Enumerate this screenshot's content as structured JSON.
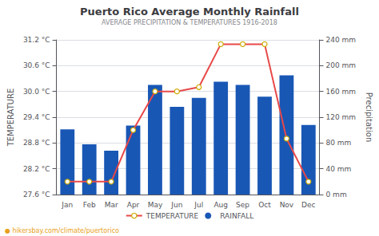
{
  "chart_data": {
    "type": "bar",
    "title": "Puerto Rico Average Monthly Rainfall",
    "subtitle": "AVERAGE PRECIPITATION & TEMPERATURES 1916-2018",
    "categories": [
      "Jan",
      "Feb",
      "Mar",
      "Apr",
      "May",
      "Jun",
      "Jul",
      "Aug",
      "Sep",
      "Oct",
      "Nov",
      "Dec"
    ],
    "series": [
      {
        "name": "TEMPERATURE",
        "type": "line",
        "color": "#e84848",
        "marker": "circle",
        "values": [
          27.9,
          27.9,
          27.9,
          29.1,
          30.0,
          30.0,
          30.1,
          31.1,
          31.1,
          31.1,
          28.9,
          27.9
        ]
      },
      {
        "name": "RAINFALL",
        "type": "bar",
        "color": "#1957b5",
        "axis": "y2",
        "values": [
          101,
          78,
          68,
          107,
          170,
          136,
          150,
          175,
          170,
          152,
          185,
          108
        ]
      }
    ],
    "ylabel": "TEMPERATURE",
    "y2label": "Precipitation",
    "ylim": [
      27.6,
      31.2
    ],
    "yticks": [
      {
        "value": 27.6,
        "label": "27.6 °C"
      },
      {
        "value": 28.2,
        "label": "28.2 °C"
      },
      {
        "value": 28.8,
        "label": "28.8 °C"
      },
      {
        "value": 29.4,
        "label": "29.4 °C"
      },
      {
        "value": 30.0,
        "label": "30.0 °C"
      },
      {
        "value": 30.6,
        "label": "30.6 °C"
      },
      {
        "value": 31.2,
        "label": "31.2 °C"
      }
    ],
    "y2lim": [
      0,
      240
    ],
    "y2ticks": [
      {
        "value": 0,
        "label": "0 mm"
      },
      {
        "value": 40,
        "label": "40 mm"
      },
      {
        "value": 80,
        "label": "80 mm"
      },
      {
        "value": 120,
        "label": "120 mm"
      },
      {
        "value": 160,
        "label": "160 mm"
      },
      {
        "value": 200,
        "label": "200 mm"
      },
      {
        "value": 240,
        "label": "240 mm"
      }
    ],
    "grid": true,
    "legend": "bottom",
    "annotations": [
      "● hikersbay.com/climate/puertorico"
    ]
  }
}
